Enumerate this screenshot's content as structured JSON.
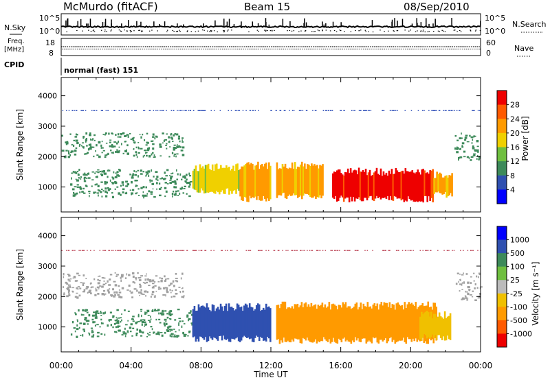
{
  "header": {
    "station": "McMurdo (fitACF)",
    "beam": "Beam 15",
    "date": "08/Sep/2010"
  },
  "noise_panel": {
    "left_label": "N.Sky",
    "right_label": "N.Search",
    "left_ticks": [
      "10^5",
      "10^0"
    ],
    "right_ticks": [
      "10^5",
      "10^0"
    ]
  },
  "freq_panel": {
    "left_label_line1": "Freq.",
    "left_label_line2": "[MHz]",
    "right_label": "Nave",
    "left_ticks": [
      "18",
      "8"
    ],
    "right_ticks": [
      "60",
      "0"
    ]
  },
  "cpid": {
    "label": "CPID",
    "value": "normal (fast) 151"
  },
  "colors": {
    "power_scale": [
      "#0000ff",
      "#2f50b0",
      "#3d8a5a",
      "#6fbf3f",
      "#f0d000",
      "#ff9a00",
      "#ff5a00",
      "#ee0000"
    ],
    "velocity_scale": [
      "#ee0000",
      "#ff5a00",
      "#ff9a00",
      "#f0c000",
      "#bbbbbb",
      "#6fbf3f",
      "#3d8a5a",
      "#2f50b0",
      "#0000ff"
    ],
    "ground_scatter": "#a0a0a0"
  },
  "chart_data": [
    {
      "type": "heatmap",
      "panel": "power",
      "ylabel": "Slant Range [km]",
      "colorbar_label": "Power [dB]",
      "colorbar_ticks": [
        "4",
        "8",
        "12",
        "16",
        "20",
        "24",
        "28"
      ],
      "ylim": [
        180,
        4600
      ],
      "yticks": [
        1000,
        2000,
        3000,
        4000
      ],
      "xlim_hours": [
        0,
        24
      ],
      "echo_regions": [
        {
          "t_start": 0.0,
          "t_end": 7.0,
          "r_bottom": 2000,
          "r_top": 2800,
          "level": "8",
          "kind": "patchy"
        },
        {
          "t_start": 0.5,
          "t_end": 7.5,
          "r_bottom": 700,
          "r_top": 1600,
          "level": "8",
          "kind": "patchy"
        },
        {
          "t_start": 7.5,
          "t_end": 10.2,
          "r_bottom": 900,
          "r_top": 1650,
          "level": "16",
          "kind": "band"
        },
        {
          "t_start": 10.2,
          "t_end": 12.0,
          "r_bottom": 650,
          "r_top": 1700,
          "level": "20",
          "kind": "band"
        },
        {
          "t_start": 12.3,
          "t_end": 15.0,
          "r_bottom": 750,
          "r_top": 1700,
          "level": "20",
          "kind": "band"
        },
        {
          "t_start": 15.5,
          "t_end": 21.3,
          "r_bottom": 650,
          "r_top": 1500,
          "level": "28",
          "kind": "band"
        },
        {
          "t_start": 21.3,
          "t_end": 22.4,
          "r_bottom": 800,
          "r_top": 1400,
          "level": "20",
          "kind": "band"
        },
        {
          "t_start": 22.5,
          "t_end": 24.0,
          "r_bottom": 1900,
          "r_top": 2800,
          "level": "8",
          "kind": "patchy"
        }
      ]
    },
    {
      "type": "heatmap",
      "panel": "velocity",
      "ylabel": "Slant Range [km]",
      "xlabel": "Time UT",
      "colorbar_label": "Velocity [m s⁻¹]",
      "colorbar_ticks": [
        "-1000",
        "-500",
        "-100",
        "-25",
        "25",
        "100",
        "500",
        "1000"
      ],
      "ylim": [
        180,
        4600
      ],
      "yticks": [
        1000,
        2000,
        3000,
        4000
      ],
      "xlim_hours": [
        0,
        24
      ],
      "xticks": [
        "00:00",
        "04:00",
        "08:00",
        "12:00",
        "16:00",
        "20:00",
        "00:00"
      ],
      "echo_regions": [
        {
          "t_start": 0.0,
          "t_end": 7.0,
          "r_bottom": 2000,
          "r_top": 2800,
          "level": "gs",
          "kind": "patchy"
        },
        {
          "t_start": 0.5,
          "t_end": 7.5,
          "r_bottom": 700,
          "r_top": 1600,
          "level": "100",
          "kind": "patchy"
        },
        {
          "t_start": 7.5,
          "t_end": 12.0,
          "r_bottom": 650,
          "r_top": 1650,
          "level": "500",
          "kind": "band"
        },
        {
          "t_start": 12.3,
          "t_end": 21.5,
          "r_bottom": 600,
          "r_top": 1700,
          "level": "-500",
          "kind": "band"
        },
        {
          "t_start": 20.5,
          "t_end": 22.3,
          "r_bottom": 700,
          "r_top": 1400,
          "level": "-100",
          "kind": "band"
        },
        {
          "t_start": 22.5,
          "t_end": 24.0,
          "r_bottom": 1900,
          "r_top": 2800,
          "level": "gs",
          "kind": "patchy"
        }
      ]
    }
  ]
}
